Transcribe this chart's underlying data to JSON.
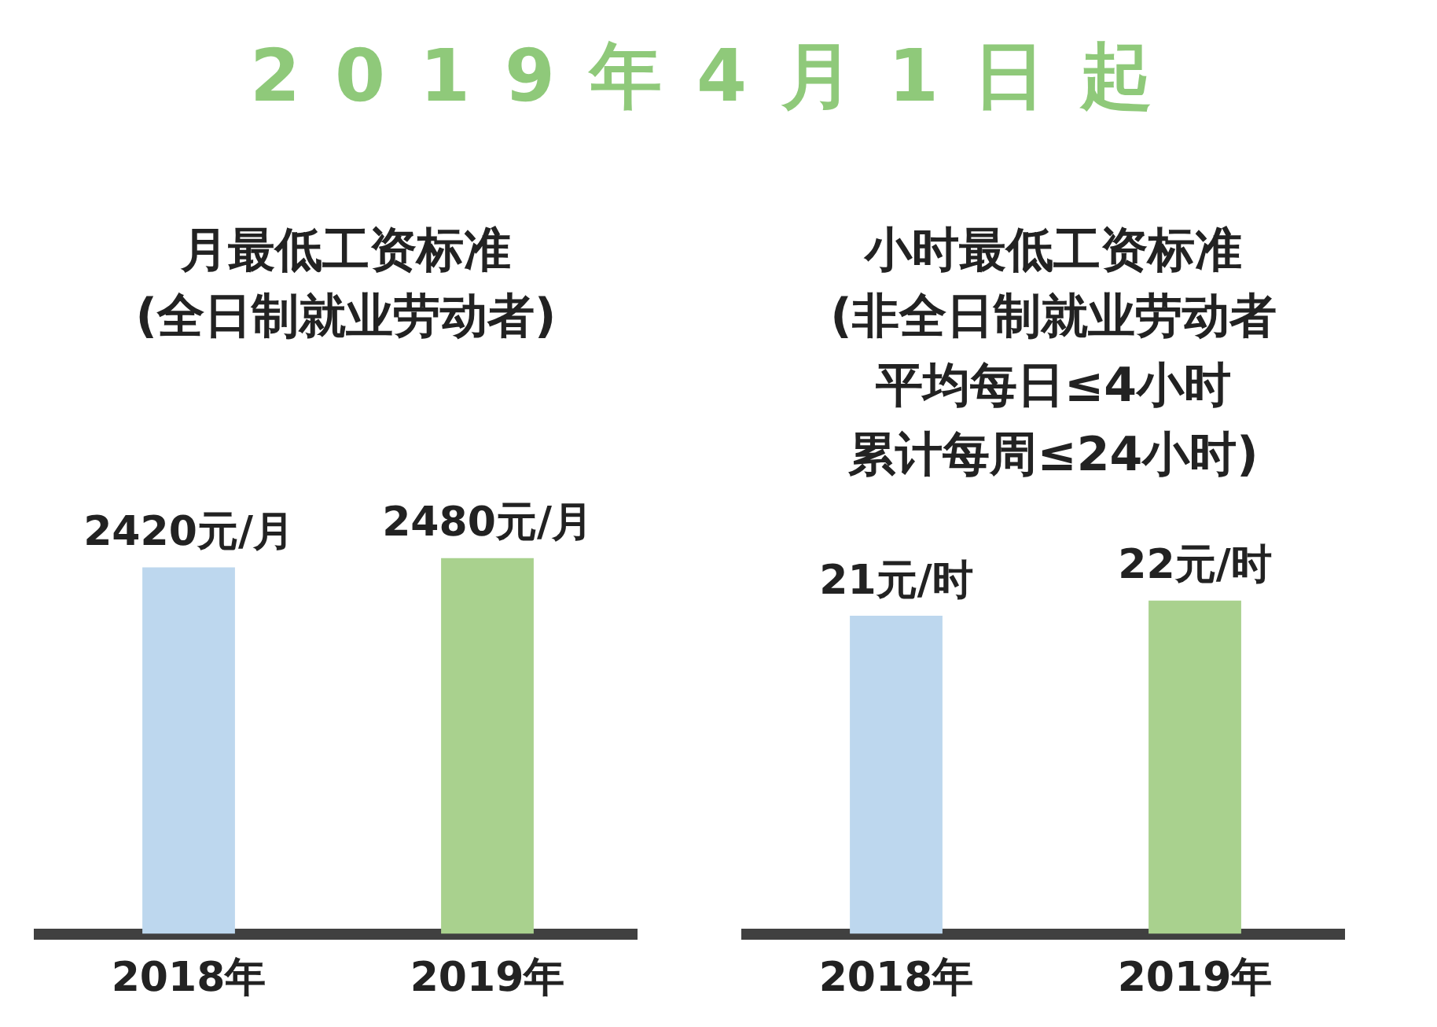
{
  "chart_data": [
    {
      "type": "other",
      "title": "2019年4月1日起"
    },
    {
      "type": "bar",
      "title": "月最低工资标准",
      "subtitle": "(全日制就业劳动者)",
      "categories": [
        "2018年",
        "2019年"
      ],
      "values": [
        2420,
        2480
      ],
      "colors": [
        "#bdd7ee",
        "#a9d18e"
      ],
      "value_labels": [
        "2420元/月",
        "2480元/月"
      ],
      "grid": false,
      "legend": false
    },
    {
      "type": "bar",
      "title": "小时最低工资标准",
      "subtitle": "(非全日制就业劳动者",
      "annotations": [
        "平均每日≤4小时",
        "累计每周≤24小时)"
      ],
      "categories": [
        "2018年",
        "2019年"
      ],
      "values": [
        21,
        22
      ],
      "colors": [
        "#bdd7ee",
        "#a9d18e"
      ],
      "value_labels": [
        "21元/时",
        "22元/时"
      ],
      "grid": false,
      "legend": false
    }
  ]
}
